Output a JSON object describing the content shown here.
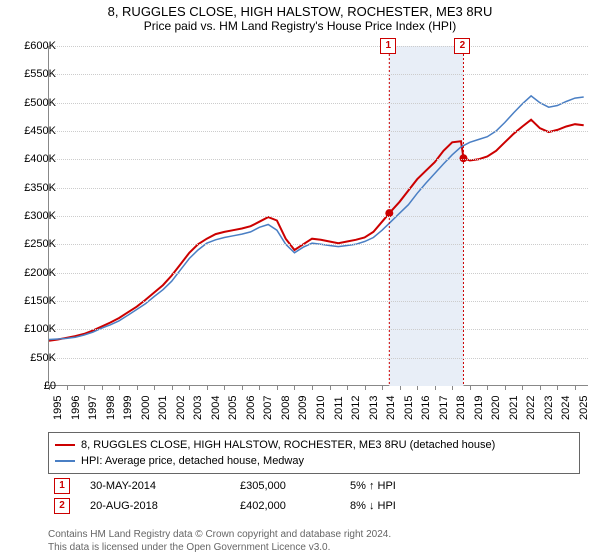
{
  "title": "8, RUGGLES CLOSE, HIGH HALSTOW, ROCHESTER, ME3 8RU",
  "subtitle": "Price paid vs. HM Land Registry's House Price Index (HPI)",
  "chart": {
    "type": "line",
    "background_color": "#ffffff",
    "grid_color": "#cccccc",
    "axis_color": "#888888",
    "label_fontsize": 11,
    "y": {
      "min": 0,
      "max": 600000,
      "step": 50000,
      "format_prefix": "£",
      "labels": [
        "£0",
        "£50K",
        "£100K",
        "£150K",
        "£200K",
        "£250K",
        "£300K",
        "£350K",
        "£400K",
        "£450K",
        "£500K",
        "£550K",
        "£600K"
      ]
    },
    "x": {
      "min": 1995,
      "max": 2025.8,
      "ticks": [
        1995,
        1996,
        1997,
        1998,
        1999,
        2000,
        2001,
        2002,
        2003,
        2004,
        2005,
        2006,
        2007,
        2008,
        2009,
        2010,
        2011,
        2012,
        2013,
        2014,
        2015,
        2016,
        2017,
        2018,
        2019,
        2020,
        2021,
        2022,
        2023,
        2024,
        2025
      ]
    },
    "shade_band": {
      "start": 2014.41,
      "end": 2018.64,
      "color": "#e8eef7"
    },
    "series": [
      {
        "id": "property",
        "label": "8, RUGGLES CLOSE, HIGH HALSTOW, ROCHESTER, ME3 8RU (detached house)",
        "color": "#cc0000",
        "width": 2,
        "data": [
          [
            1995.0,
            80000
          ],
          [
            1995.5,
            82000
          ],
          [
            1996.0,
            85000
          ],
          [
            1996.5,
            88000
          ],
          [
            1997.0,
            92000
          ],
          [
            1997.5,
            98000
          ],
          [
            1998.0,
            105000
          ],
          [
            1998.5,
            112000
          ],
          [
            1999.0,
            120000
          ],
          [
            1999.5,
            130000
          ],
          [
            2000.0,
            140000
          ],
          [
            2000.5,
            152000
          ],
          [
            2001.0,
            165000
          ],
          [
            2001.5,
            178000
          ],
          [
            2002.0,
            195000
          ],
          [
            2002.5,
            215000
          ],
          [
            2003.0,
            235000
          ],
          [
            2003.5,
            250000
          ],
          [
            2004.0,
            260000
          ],
          [
            2004.5,
            268000
          ],
          [
            2005.0,
            272000
          ],
          [
            2005.5,
            275000
          ],
          [
            2006.0,
            278000
          ],
          [
            2006.5,
            282000
          ],
          [
            2007.0,
            290000
          ],
          [
            2007.5,
            298000
          ],
          [
            2008.0,
            292000
          ],
          [
            2008.5,
            260000
          ],
          [
            2009.0,
            240000
          ],
          [
            2009.5,
            250000
          ],
          [
            2010.0,
            260000
          ],
          [
            2010.5,
            258000
          ],
          [
            2011.0,
            255000
          ],
          [
            2011.5,
            252000
          ],
          [
            2012.0,
            255000
          ],
          [
            2012.5,
            258000
          ],
          [
            2013.0,
            262000
          ],
          [
            2013.5,
            272000
          ],
          [
            2014.0,
            290000
          ],
          [
            2014.41,
            305000
          ],
          [
            2015.0,
            325000
          ],
          [
            2015.5,
            345000
          ],
          [
            2016.0,
            365000
          ],
          [
            2016.5,
            380000
          ],
          [
            2017.0,
            395000
          ],
          [
            2017.5,
            415000
          ],
          [
            2018.0,
            430000
          ],
          [
            2018.5,
            432000
          ],
          [
            2018.64,
            402000
          ],
          [
            2019.0,
            398000
          ],
          [
            2019.5,
            400000
          ],
          [
            2020.0,
            405000
          ],
          [
            2020.5,
            415000
          ],
          [
            2021.0,
            430000
          ],
          [
            2021.5,
            445000
          ],
          [
            2022.0,
            458000
          ],
          [
            2022.5,
            470000
          ],
          [
            2023.0,
            455000
          ],
          [
            2023.5,
            448000
          ],
          [
            2024.0,
            452000
          ],
          [
            2024.5,
            458000
          ],
          [
            2025.0,
            462000
          ],
          [
            2025.5,
            460000
          ]
        ]
      },
      {
        "id": "hpi",
        "label": "HPI: Average price, detached house, Medway",
        "color": "#4a7fc4",
        "width": 1.5,
        "data": [
          [
            1995.0,
            82000
          ],
          [
            1995.5,
            83000
          ],
          [
            1996.0,
            84000
          ],
          [
            1996.5,
            86000
          ],
          [
            1997.0,
            90000
          ],
          [
            1997.5,
            95000
          ],
          [
            1998.0,
            102000
          ],
          [
            1998.5,
            108000
          ],
          [
            1999.0,
            115000
          ],
          [
            1999.5,
            125000
          ],
          [
            2000.0,
            135000
          ],
          [
            2000.5,
            145000
          ],
          [
            2001.0,
            158000
          ],
          [
            2001.5,
            170000
          ],
          [
            2002.0,
            185000
          ],
          [
            2002.5,
            205000
          ],
          [
            2003.0,
            225000
          ],
          [
            2003.5,
            240000
          ],
          [
            2004.0,
            252000
          ],
          [
            2004.5,
            258000
          ],
          [
            2005.0,
            262000
          ],
          [
            2005.5,
            265000
          ],
          [
            2006.0,
            268000
          ],
          [
            2006.5,
            272000
          ],
          [
            2007.0,
            280000
          ],
          [
            2007.5,
            285000
          ],
          [
            2008.0,
            275000
          ],
          [
            2008.5,
            250000
          ],
          [
            2009.0,
            235000
          ],
          [
            2009.5,
            245000
          ],
          [
            2010.0,
            252000
          ],
          [
            2010.5,
            250000
          ],
          [
            2011.0,
            248000
          ],
          [
            2011.5,
            246000
          ],
          [
            2012.0,
            248000
          ],
          [
            2012.5,
            250000
          ],
          [
            2013.0,
            255000
          ],
          [
            2013.5,
            262000
          ],
          [
            2014.0,
            275000
          ],
          [
            2014.5,
            290000
          ],
          [
            2015.0,
            305000
          ],
          [
            2015.5,
            320000
          ],
          [
            2016.0,
            340000
          ],
          [
            2016.5,
            358000
          ],
          [
            2017.0,
            375000
          ],
          [
            2017.5,
            392000
          ],
          [
            2018.0,
            408000
          ],
          [
            2018.5,
            422000
          ],
          [
            2019.0,
            430000
          ],
          [
            2019.5,
            435000
          ],
          [
            2020.0,
            440000
          ],
          [
            2020.5,
            450000
          ],
          [
            2021.0,
            465000
          ],
          [
            2021.5,
            482000
          ],
          [
            2022.0,
            498000
          ],
          [
            2022.5,
            512000
          ],
          [
            2023.0,
            500000
          ],
          [
            2023.5,
            492000
          ],
          [
            2024.0,
            495000
          ],
          [
            2024.5,
            502000
          ],
          [
            2025.0,
            508000
          ],
          [
            2025.5,
            510000
          ]
        ]
      }
    ],
    "sale_points": [
      {
        "n": "1",
        "x": 2014.41,
        "y": 305000,
        "color": "#cc0000"
      },
      {
        "n": "2",
        "x": 2018.64,
        "y": 402000,
        "color": "#cc0000"
      }
    ]
  },
  "legend": {
    "border_color": "#666666"
  },
  "sales": [
    {
      "n": "1",
      "date": "30-MAY-2014",
      "price": "£305,000",
      "hpi": "5% ↑ HPI"
    },
    {
      "n": "2",
      "date": "20-AUG-2018",
      "price": "£402,000",
      "hpi": "8% ↓ HPI"
    }
  ],
  "footer_line1": "Contains HM Land Registry data © Crown copyright and database right 2024.",
  "footer_line2": "This data is licensed under the Open Government Licence v3.0."
}
